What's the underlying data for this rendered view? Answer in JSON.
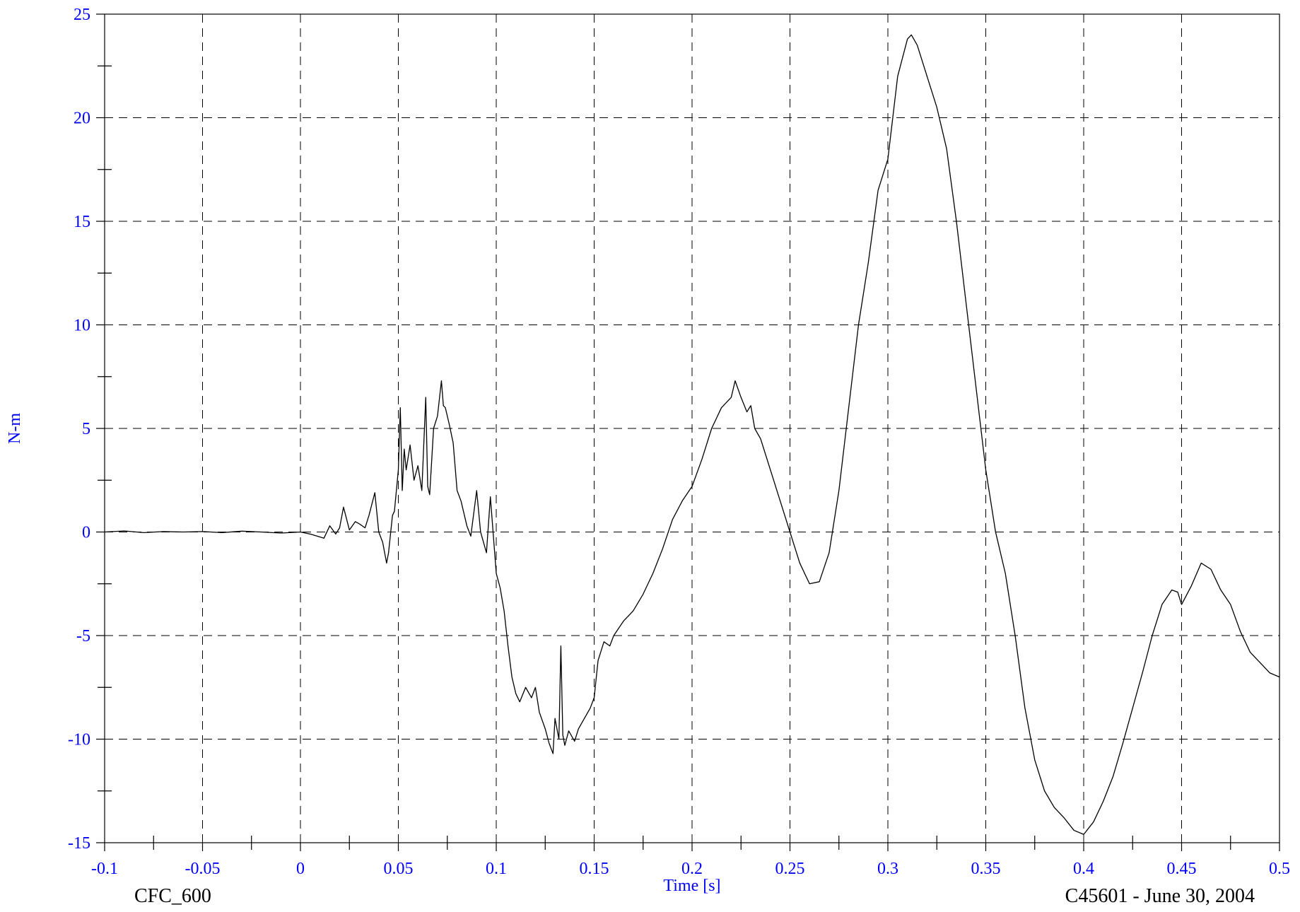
{
  "chart_data": {
    "type": "line",
    "title": "",
    "xlabel": "Time [s]",
    "ylabel": "N-m",
    "xlim": [
      -0.1,
      0.5
    ],
    "ylim": [
      -15,
      25
    ],
    "x_ticks": [
      -0.1,
      -0.05,
      0,
      0.05,
      0.1,
      0.15,
      0.2,
      0.25,
      0.3,
      0.35,
      0.4,
      0.45,
      0.5
    ],
    "x_tick_labels": [
      "-0.1",
      "-0.05",
      "0",
      "0.05",
      "0.1",
      "0.15",
      "0.2",
      "0.25",
      "0.3",
      "0.35",
      "0.4",
      "0.45",
      "0.5"
    ],
    "y_ticks": [
      -15,
      -10,
      -5,
      0,
      5,
      10,
      15,
      20,
      25
    ],
    "y_tick_labels": [
      "-15",
      "-10",
      "-5",
      "0",
      "5",
      "10",
      "15",
      "20",
      "25"
    ],
    "grid": true,
    "grid_style": "dashed",
    "label_color": "#0000ff",
    "line_color": "#000000",
    "series": [
      {
        "x": [
          -0.1,
          -0.09,
          -0.08,
          -0.07,
          -0.06,
          -0.05,
          -0.04,
          -0.03,
          -0.02,
          -0.01,
          0.0,
          0.005,
          0.012,
          0.015,
          0.018,
          0.02,
          0.022,
          0.025,
          0.028,
          0.03,
          0.033,
          0.035,
          0.038,
          0.04,
          0.042,
          0.044,
          0.045,
          0.047,
          0.048,
          0.05,
          0.051,
          0.052,
          0.053,
          0.054,
          0.056,
          0.058,
          0.06,
          0.062,
          0.064,
          0.065,
          0.066,
          0.068,
          0.07,
          0.072,
          0.073,
          0.074,
          0.076,
          0.078,
          0.08,
          0.082,
          0.085,
          0.087,
          0.09,
          0.092,
          0.095,
          0.097,
          0.1,
          0.102,
          0.104,
          0.106,
          0.108,
          0.11,
          0.112,
          0.115,
          0.118,
          0.12,
          0.122,
          0.125,
          0.127,
          0.129,
          0.13,
          0.132,
          0.133,
          0.134,
          0.135,
          0.137,
          0.14,
          0.142,
          0.145,
          0.148,
          0.15,
          0.152,
          0.155,
          0.158,
          0.16,
          0.165,
          0.17,
          0.175,
          0.18,
          0.185,
          0.19,
          0.195,
          0.2,
          0.205,
          0.21,
          0.215,
          0.22,
          0.222,
          0.225,
          0.228,
          0.23,
          0.232,
          0.235,
          0.24,
          0.245,
          0.25,
          0.255,
          0.26,
          0.265,
          0.27,
          0.275,
          0.28,
          0.285,
          0.29,
          0.295,
          0.3,
          0.305,
          0.31,
          0.312,
          0.315,
          0.32,
          0.325,
          0.33,
          0.335,
          0.34,
          0.345,
          0.35,
          0.355,
          0.36,
          0.365,
          0.37,
          0.375,
          0.38,
          0.385,
          0.39,
          0.395,
          0.4,
          0.405,
          0.41,
          0.415,
          0.42,
          0.425,
          0.43,
          0.435,
          0.44,
          0.445,
          0.448,
          0.45,
          0.455,
          0.46,
          0.465,
          0.47,
          0.475,
          0.48,
          0.485,
          0.49,
          0.495,
          0.5
        ],
        "y": [
          0.0,
          0.05,
          -0.03,
          0.02,
          0.0,
          0.02,
          -0.03,
          0.04,
          0.0,
          -0.05,
          0.0,
          -0.1,
          -0.3,
          0.3,
          -0.1,
          0.2,
          1.2,
          0.1,
          0.5,
          0.4,
          0.2,
          0.8,
          1.9,
          0.0,
          -0.5,
          -1.5,
          -1.0,
          0.8,
          1.0,
          3.0,
          6.0,
          2.0,
          4.0,
          3.0,
          4.2,
          2.5,
          3.2,
          2.0,
          6.5,
          2.2,
          1.8,
          5.0,
          5.6,
          7.3,
          6.1,
          6.0,
          5.2,
          4.3,
          2.0,
          1.5,
          0.3,
          -0.2,
          2.0,
          0.0,
          -1.0,
          1.7,
          -2.0,
          -2.7,
          -3.8,
          -5.5,
          -7.0,
          -7.8,
          -8.2,
          -7.5,
          -8.0,
          -7.5,
          -8.7,
          -9.5,
          -10.2,
          -10.7,
          -9.0,
          -10.0,
          -5.5,
          -9.8,
          -10.3,
          -9.6,
          -10.1,
          -9.5,
          -9.0,
          -8.5,
          -8.0,
          -6.2,
          -5.3,
          -5.5,
          -5.0,
          -4.3,
          -3.8,
          -3.0,
          -2.0,
          -0.8,
          0.6,
          1.5,
          2.2,
          3.5,
          5.0,
          6.0,
          6.5,
          7.3,
          6.5,
          5.8,
          6.1,
          5.0,
          4.5,
          3.0,
          1.5,
          0.0,
          -1.5,
          -2.5,
          -2.4,
          -1.0,
          2.0,
          6.0,
          10.0,
          13.0,
          16.5,
          18.0,
          22.0,
          23.8,
          24.0,
          23.5,
          22.0,
          20.5,
          18.5,
          15.0,
          11.0,
          7.0,
          3.0,
          0.0,
          -2.0,
          -5.0,
          -8.5,
          -11.0,
          -12.5,
          -13.3,
          -13.8,
          -14.4,
          -14.6,
          -14.0,
          -13.0,
          -11.8,
          -10.2,
          -8.5,
          -6.8,
          -5.0,
          -3.5,
          -2.8,
          -2.9,
          -3.5,
          -2.6,
          -1.5,
          -1.8,
          -2.8,
          -3.5,
          -4.8,
          -5.8,
          -6.3,
          -6.8,
          -7.0
        ]
      }
    ]
  },
  "footer": {
    "left": "CFC_600",
    "right": "C45601 - June 30, 2004"
  }
}
